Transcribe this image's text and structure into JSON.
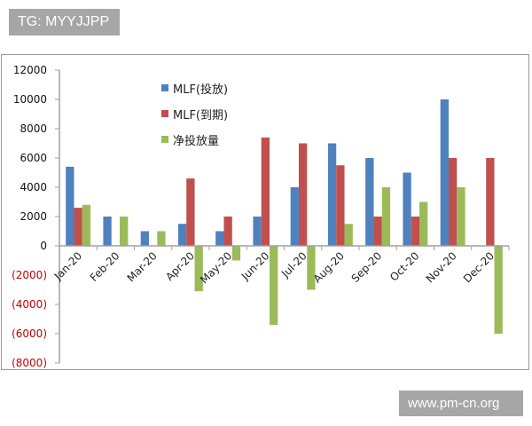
{
  "watermarks": {
    "top": "TG: MYYJJPP",
    "bottom": "www.pm-cn.org"
  },
  "colors": {
    "mlf_issue": "#4f81bd",
    "mlf_maturity": "#c0504d",
    "net_injection": "#9bbb59",
    "negative_tick": "#c00000",
    "positive_tick": "#111111",
    "axis": "#a0a0a0"
  },
  "chart_data": {
    "type": "bar",
    "title": "",
    "xlabel": "",
    "ylabel": "",
    "ylim": [
      -8000,
      12000
    ],
    "yticks": [
      12000,
      10000,
      8000,
      6000,
      4000,
      2000,
      0,
      -2000,
      -4000,
      -6000,
      -8000
    ],
    "ytick_labels": [
      "12000",
      "10000",
      "8000",
      "6000",
      "4000",
      "2000",
      "0",
      "(2000)",
      "(4000)",
      "(6000)",
      "(8000)"
    ],
    "grid": false,
    "legend_position": "upper-left-inside",
    "categories": [
      "Jan-20",
      "Feb-20",
      "Mar-20",
      "Apr-20",
      "May-20",
      "Jun-20",
      "Jul-20",
      "Aug-20",
      "Sep-20",
      "Oct-20",
      "Nov-20",
      "Dec-20"
    ],
    "series": [
      {
        "name": "MLF(投放)",
        "color": "#4f81bd",
        "values": [
          5400,
          2000,
          1000,
          1500,
          1000,
          2000,
          4000,
          7000,
          6000,
          5000,
          10000,
          0
        ]
      },
      {
        "name": "MLF(到期)",
        "color": "#c0504d",
        "values": [
          2600,
          0,
          0,
          4600,
          2000,
          7400,
          7000,
          5500,
          2000,
          2000,
          6000,
          6000
        ]
      },
      {
        "name": "净投放量",
        "color": "#9bbb59",
        "values": [
          2800,
          2000,
          1000,
          -3100,
          -1000,
          -5400,
          -3000,
          1500,
          4000,
          3000,
          4000,
          -6000
        ]
      }
    ]
  }
}
